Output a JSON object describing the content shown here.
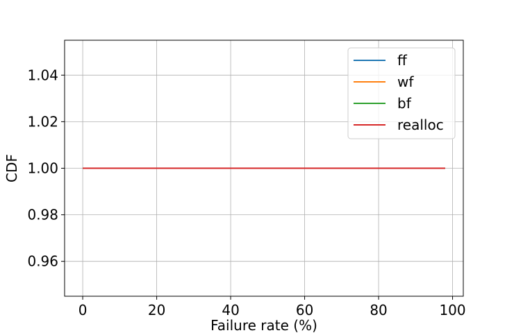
{
  "chart_data": {
    "type": "line",
    "title": "",
    "xlabel": "Failure rate (%)",
    "ylabel": "CDF",
    "xlim": [
      -4.9,
      102.9
    ],
    "ylim": [
      0.945,
      1.055
    ],
    "x_ticks": [
      0,
      20,
      40,
      60,
      80,
      100
    ],
    "x_tick_labels": [
      "0",
      "20",
      "40",
      "60",
      "80",
      "100"
    ],
    "y_ticks": [
      0.96,
      0.98,
      1.0,
      1.02,
      1.04
    ],
    "y_tick_labels": [
      "0.96",
      "0.98",
      "1.00",
      "1.02",
      "1.04"
    ],
    "grid": true,
    "legend_position": "top-right",
    "series": [
      {
        "name": "ff",
        "color": "#1f77b4",
        "x": [
          0,
          98
        ],
        "y": [
          1.0,
          1.0
        ]
      },
      {
        "name": "wf",
        "color": "#ff7f0e",
        "x": [
          0,
          98
        ],
        "y": [
          1.0,
          1.0
        ]
      },
      {
        "name": "bf",
        "color": "#2ca02c",
        "x": [
          0,
          98
        ],
        "y": [
          1.0,
          1.0
        ]
      },
      {
        "name": "realloc",
        "color": "#d62728",
        "x": [
          0,
          98
        ],
        "y": [
          1.0,
          1.0
        ]
      }
    ]
  }
}
